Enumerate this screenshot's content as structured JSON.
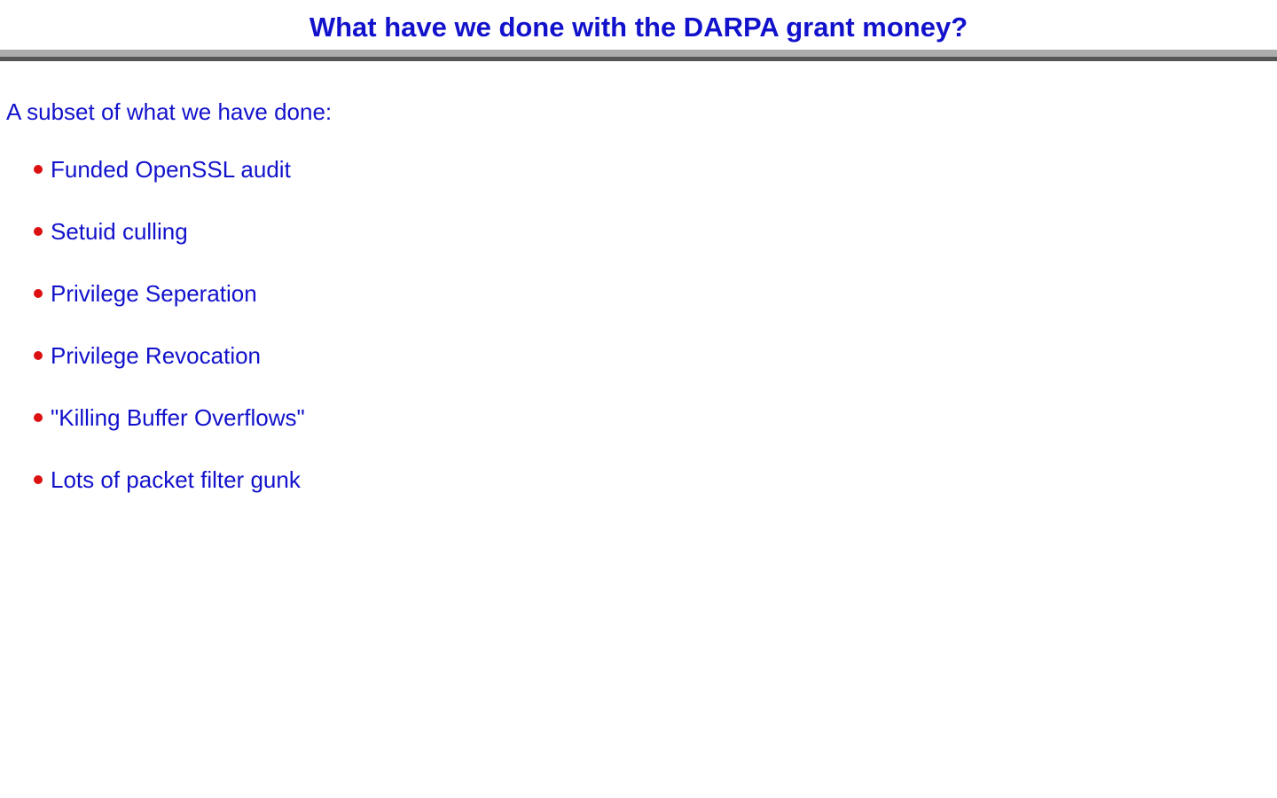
{
  "slide": {
    "title": "What have we done with the DARPA grant money?",
    "intro": "A subset of what we have done:",
    "bullets": [
      "Funded OpenSSL audit",
      "Setuid culling",
      "Privilege Seperation",
      "Privilege Revocation",
      "\"Killing Buffer Overflows\"",
      "Lots of packet filter gunk"
    ]
  },
  "colors": {
    "background": "#FFFFFF",
    "text_blue": "#1212CC",
    "bullet_red": "#DC1010",
    "rule_light": "#ACACAC",
    "rule_dark": "#555555"
  }
}
